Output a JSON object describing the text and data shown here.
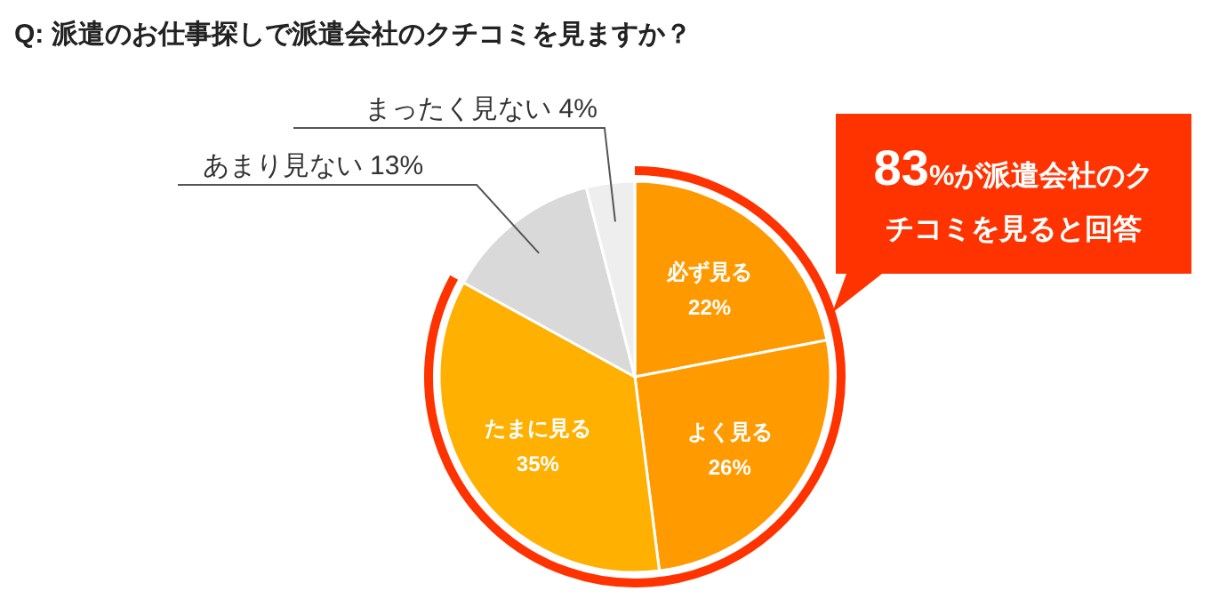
{
  "chart_data": {
    "type": "pie",
    "title": "Q: 派遣のお仕事探しで派遣会社のクチコミを見ますか？",
    "categories": [
      "必ず見る",
      "よく見る",
      "たまに見る",
      "あまり見ない",
      "まったく見ない"
    ],
    "values": [
      22,
      26,
      35,
      13,
      4
    ],
    "colors": [
      "#ff9900",
      "#ff9a00",
      "#ffb000",
      "#d9d9d9",
      "#eeeeee"
    ],
    "value_labels": [
      "22%",
      "26%",
      "35%",
      "13%",
      "4%"
    ],
    "annotations": [
      "83%が派遣会社のクチコミを見ると回答"
    ]
  }
}
